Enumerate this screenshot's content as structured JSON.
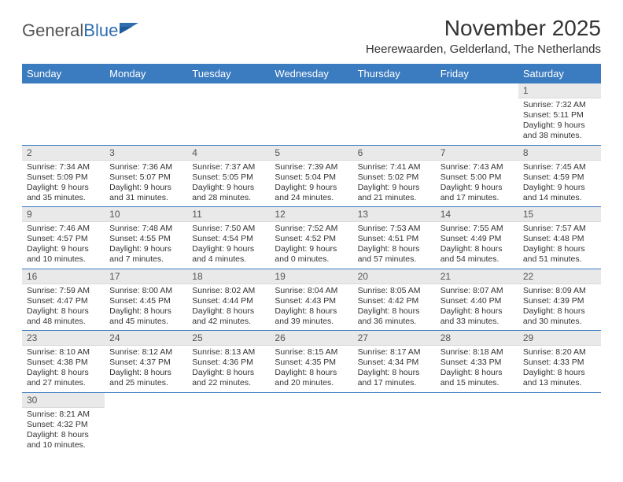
{
  "logo": {
    "text1": "General",
    "text2": "Blue"
  },
  "title": "November 2025",
  "subtitle": "Heerewaarden, Gelderland, The Netherlands",
  "colors": {
    "header_bg": "#3b7bbf",
    "header_text": "#ffffff",
    "daynum_bg": "#e9e9e9",
    "row_border": "#3b7bbf",
    "text": "#333333",
    "logo_blue": "#2f6daf"
  },
  "daynames": [
    "Sunday",
    "Monday",
    "Tuesday",
    "Wednesday",
    "Thursday",
    "Friday",
    "Saturday"
  ],
  "weeks": [
    [
      null,
      null,
      null,
      null,
      null,
      null,
      {
        "n": "1",
        "sr": "Sunrise: 7:32 AM",
        "ss": "Sunset: 5:11 PM",
        "d1": "Daylight: 9 hours",
        "d2": "and 38 minutes."
      }
    ],
    [
      {
        "n": "2",
        "sr": "Sunrise: 7:34 AM",
        "ss": "Sunset: 5:09 PM",
        "d1": "Daylight: 9 hours",
        "d2": "and 35 minutes."
      },
      {
        "n": "3",
        "sr": "Sunrise: 7:36 AM",
        "ss": "Sunset: 5:07 PM",
        "d1": "Daylight: 9 hours",
        "d2": "and 31 minutes."
      },
      {
        "n": "4",
        "sr": "Sunrise: 7:37 AM",
        "ss": "Sunset: 5:05 PM",
        "d1": "Daylight: 9 hours",
        "d2": "and 28 minutes."
      },
      {
        "n": "5",
        "sr": "Sunrise: 7:39 AM",
        "ss": "Sunset: 5:04 PM",
        "d1": "Daylight: 9 hours",
        "d2": "and 24 minutes."
      },
      {
        "n": "6",
        "sr": "Sunrise: 7:41 AM",
        "ss": "Sunset: 5:02 PM",
        "d1": "Daylight: 9 hours",
        "d2": "and 21 minutes."
      },
      {
        "n": "7",
        "sr": "Sunrise: 7:43 AM",
        "ss": "Sunset: 5:00 PM",
        "d1": "Daylight: 9 hours",
        "d2": "and 17 minutes."
      },
      {
        "n": "8",
        "sr": "Sunrise: 7:45 AM",
        "ss": "Sunset: 4:59 PM",
        "d1": "Daylight: 9 hours",
        "d2": "and 14 minutes."
      }
    ],
    [
      {
        "n": "9",
        "sr": "Sunrise: 7:46 AM",
        "ss": "Sunset: 4:57 PM",
        "d1": "Daylight: 9 hours",
        "d2": "and 10 minutes."
      },
      {
        "n": "10",
        "sr": "Sunrise: 7:48 AM",
        "ss": "Sunset: 4:55 PM",
        "d1": "Daylight: 9 hours",
        "d2": "and 7 minutes."
      },
      {
        "n": "11",
        "sr": "Sunrise: 7:50 AM",
        "ss": "Sunset: 4:54 PM",
        "d1": "Daylight: 9 hours",
        "d2": "and 4 minutes."
      },
      {
        "n": "12",
        "sr": "Sunrise: 7:52 AM",
        "ss": "Sunset: 4:52 PM",
        "d1": "Daylight: 9 hours",
        "d2": "and 0 minutes."
      },
      {
        "n": "13",
        "sr": "Sunrise: 7:53 AM",
        "ss": "Sunset: 4:51 PM",
        "d1": "Daylight: 8 hours",
        "d2": "and 57 minutes."
      },
      {
        "n": "14",
        "sr": "Sunrise: 7:55 AM",
        "ss": "Sunset: 4:49 PM",
        "d1": "Daylight: 8 hours",
        "d2": "and 54 minutes."
      },
      {
        "n": "15",
        "sr": "Sunrise: 7:57 AM",
        "ss": "Sunset: 4:48 PM",
        "d1": "Daylight: 8 hours",
        "d2": "and 51 minutes."
      }
    ],
    [
      {
        "n": "16",
        "sr": "Sunrise: 7:59 AM",
        "ss": "Sunset: 4:47 PM",
        "d1": "Daylight: 8 hours",
        "d2": "and 48 minutes."
      },
      {
        "n": "17",
        "sr": "Sunrise: 8:00 AM",
        "ss": "Sunset: 4:45 PM",
        "d1": "Daylight: 8 hours",
        "d2": "and 45 minutes."
      },
      {
        "n": "18",
        "sr": "Sunrise: 8:02 AM",
        "ss": "Sunset: 4:44 PM",
        "d1": "Daylight: 8 hours",
        "d2": "and 42 minutes."
      },
      {
        "n": "19",
        "sr": "Sunrise: 8:04 AM",
        "ss": "Sunset: 4:43 PM",
        "d1": "Daylight: 8 hours",
        "d2": "and 39 minutes."
      },
      {
        "n": "20",
        "sr": "Sunrise: 8:05 AM",
        "ss": "Sunset: 4:42 PM",
        "d1": "Daylight: 8 hours",
        "d2": "and 36 minutes."
      },
      {
        "n": "21",
        "sr": "Sunrise: 8:07 AM",
        "ss": "Sunset: 4:40 PM",
        "d1": "Daylight: 8 hours",
        "d2": "and 33 minutes."
      },
      {
        "n": "22",
        "sr": "Sunrise: 8:09 AM",
        "ss": "Sunset: 4:39 PM",
        "d1": "Daylight: 8 hours",
        "d2": "and 30 minutes."
      }
    ],
    [
      {
        "n": "23",
        "sr": "Sunrise: 8:10 AM",
        "ss": "Sunset: 4:38 PM",
        "d1": "Daylight: 8 hours",
        "d2": "and 27 minutes."
      },
      {
        "n": "24",
        "sr": "Sunrise: 8:12 AM",
        "ss": "Sunset: 4:37 PM",
        "d1": "Daylight: 8 hours",
        "d2": "and 25 minutes."
      },
      {
        "n": "25",
        "sr": "Sunrise: 8:13 AM",
        "ss": "Sunset: 4:36 PM",
        "d1": "Daylight: 8 hours",
        "d2": "and 22 minutes."
      },
      {
        "n": "26",
        "sr": "Sunrise: 8:15 AM",
        "ss": "Sunset: 4:35 PM",
        "d1": "Daylight: 8 hours",
        "d2": "and 20 minutes."
      },
      {
        "n": "27",
        "sr": "Sunrise: 8:17 AM",
        "ss": "Sunset: 4:34 PM",
        "d1": "Daylight: 8 hours",
        "d2": "and 17 minutes."
      },
      {
        "n": "28",
        "sr": "Sunrise: 8:18 AM",
        "ss": "Sunset: 4:33 PM",
        "d1": "Daylight: 8 hours",
        "d2": "and 15 minutes."
      },
      {
        "n": "29",
        "sr": "Sunrise: 8:20 AM",
        "ss": "Sunset: 4:33 PM",
        "d1": "Daylight: 8 hours",
        "d2": "and 13 minutes."
      }
    ],
    [
      {
        "n": "30",
        "sr": "Sunrise: 8:21 AM",
        "ss": "Sunset: 4:32 PM",
        "d1": "Daylight: 8 hours",
        "d2": "and 10 minutes."
      },
      null,
      null,
      null,
      null,
      null,
      null
    ]
  ]
}
